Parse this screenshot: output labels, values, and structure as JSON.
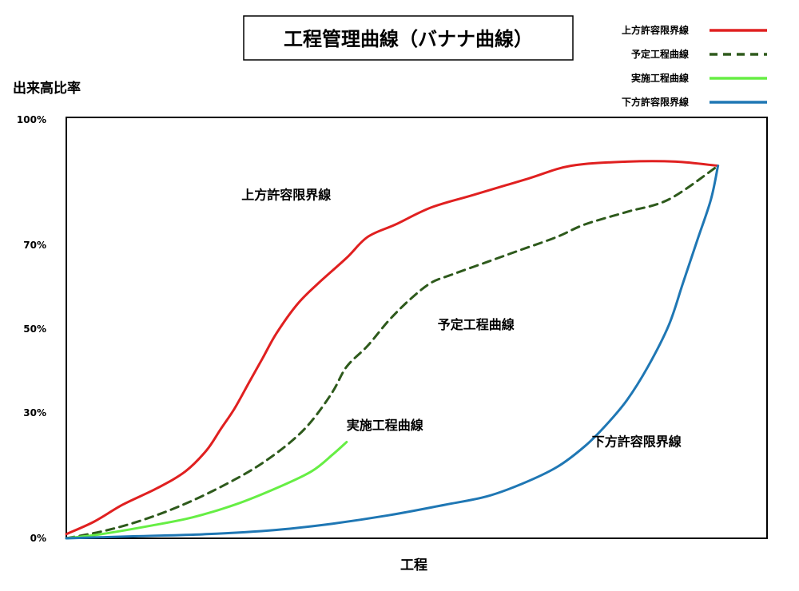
{
  "chart_data": {
    "type": "line",
    "title": "工程管理曲線（バナナ曲線）",
    "xlabel": "工程",
    "ylabel": "出来高比率",
    "xlim": [
      0,
      100
    ],
    "ylim": [
      0,
      100
    ],
    "yticks": [
      {
        "value": 100,
        "label": "100%"
      },
      {
        "value": 70,
        "label": "70%"
      },
      {
        "value": 50,
        "label": "50%"
      },
      {
        "value": 30,
        "label": "30%"
      },
      {
        "value": 0,
        "label": "0%"
      }
    ],
    "grid": false,
    "legend_position": "top-right",
    "series": [
      {
        "name": "上方許容限界線",
        "color": "#e02020",
        "dash": false,
        "points": [
          [
            0,
            1
          ],
          [
            4,
            4
          ],
          [
            8,
            8
          ],
          [
            13,
            12
          ],
          [
            17,
            16
          ],
          [
            20,
            21
          ],
          [
            22,
            26
          ],
          [
            24,
            31
          ],
          [
            26,
            37
          ],
          [
            28,
            43
          ],
          [
            30,
            49
          ],
          [
            33,
            56
          ],
          [
            36,
            61
          ],
          [
            40,
            67
          ],
          [
            43,
            72
          ],
          [
            47,
            75
          ],
          [
            52,
            79
          ],
          [
            58,
            82
          ],
          [
            66,
            86
          ],
          [
            72,
            89
          ],
          [
            80,
            90
          ],
          [
            87,
            90
          ],
          [
            93,
            89
          ]
        ]
      },
      {
        "name": "予定工程曲線",
        "color": "#2e5a1c",
        "dash": true,
        "points": [
          [
            0,
            0
          ],
          [
            6,
            2
          ],
          [
            12,
            5
          ],
          [
            18,
            9
          ],
          [
            24,
            14
          ],
          [
            28,
            18
          ],
          [
            32,
            23
          ],
          [
            35,
            28
          ],
          [
            38,
            35
          ],
          [
            40,
            41
          ],
          [
            43,
            46
          ],
          [
            46,
            52
          ],
          [
            49,
            57
          ],
          [
            52,
            61
          ],
          [
            55,
            63
          ],
          [
            60,
            66
          ],
          [
            65,
            69
          ],
          [
            70,
            72
          ],
          [
            74,
            75
          ],
          [
            80,
            78
          ],
          [
            86,
            81
          ],
          [
            93,
            89
          ]
        ]
      },
      {
        "name": "実施工程曲線",
        "color": "#66ee44",
        "dash": false,
        "points": [
          [
            0,
            0
          ],
          [
            5,
            1
          ],
          [
            12,
            3
          ],
          [
            18,
            5
          ],
          [
            24,
            8
          ],
          [
            30,
            12
          ],
          [
            35,
            16
          ],
          [
            38,
            20
          ],
          [
            40,
            23
          ]
        ]
      },
      {
        "name": "下方許容限界線",
        "color": "#1f77b4",
        "dash": false,
        "points": [
          [
            0,
            0
          ],
          [
            10,
            0.5
          ],
          [
            20,
            1
          ],
          [
            30,
            2
          ],
          [
            38,
            3.5
          ],
          [
            46,
            5.5
          ],
          [
            54,
            8
          ],
          [
            60,
            10
          ],
          [
            65,
            13
          ],
          [
            70,
            17
          ],
          [
            74,
            22
          ],
          [
            77,
            27
          ],
          [
            80,
            33
          ],
          [
            83,
            41
          ],
          [
            86,
            51
          ],
          [
            88,
            61
          ],
          [
            90,
            71
          ],
          [
            92,
            81
          ],
          [
            93,
            89
          ]
        ]
      }
    ],
    "annotations": [
      {
        "text": "上方許容限界線",
        "x": 25,
        "y": 81
      },
      {
        "text": "予定工程曲線",
        "x": 53,
        "y": 50
      },
      {
        "text": "実施工程曲線",
        "x": 40,
        "y": 26
      },
      {
        "text": "下方許容限界線",
        "x": 75,
        "y": 22
      }
    ]
  }
}
